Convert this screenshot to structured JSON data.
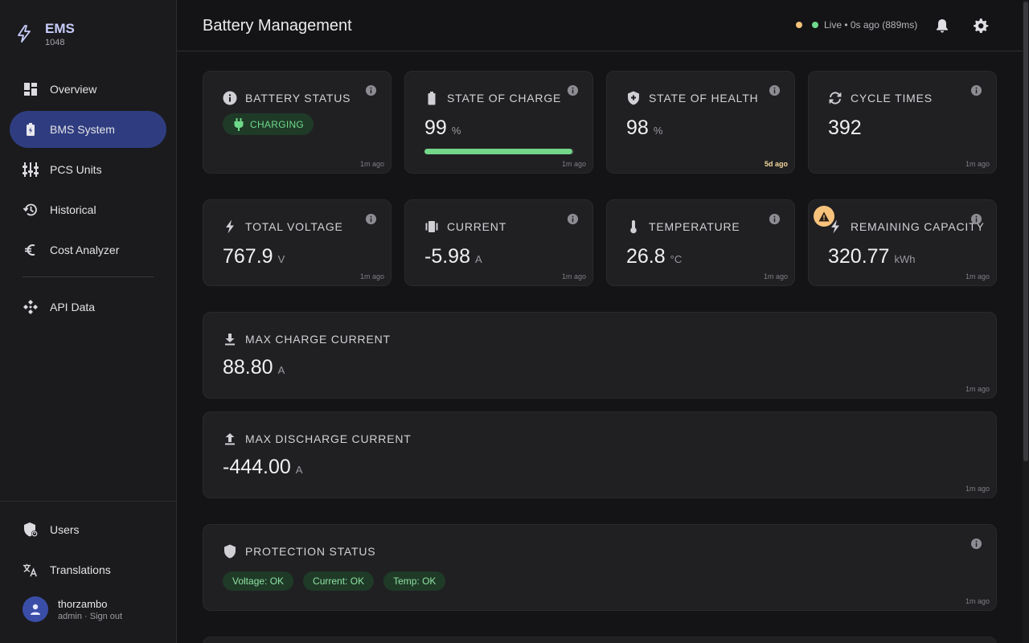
{
  "brand": {
    "name": "EMS",
    "sub": "1048"
  },
  "nav": {
    "items": [
      {
        "label": "Overview",
        "icon": "dashboard-icon"
      },
      {
        "label": "BMS System",
        "icon": "battery-icon",
        "active": true
      },
      {
        "label": "PCS Units",
        "icon": "inverter-icon"
      },
      {
        "label": "Historical",
        "icon": "history-icon"
      },
      {
        "label": "Cost Analyzer",
        "icon": "euro-icon"
      },
      {
        "label": "API Data",
        "icon": "api-icon"
      }
    ],
    "bottom": [
      {
        "label": "Users",
        "icon": "shield-user-icon"
      },
      {
        "label": "Translations",
        "icon": "translate-icon"
      }
    ]
  },
  "user": {
    "name": "thorzambo",
    "sub": "admin · Sign out"
  },
  "header": {
    "title": "Battery Management",
    "live_status": "Live • 0s ago (889ms)"
  },
  "cards": {
    "battery_status": {
      "title": "BATTERY STATUS",
      "chip": "CHARGING",
      "age": "1m ago"
    },
    "soc": {
      "title": "STATE OF CHARGE",
      "value": "99",
      "unit": "%",
      "progress_percent": 99,
      "age": "1m ago"
    },
    "soh": {
      "title": "STATE OF HEALTH",
      "value": "98",
      "unit": "%",
      "age": "5d ago"
    },
    "cycles": {
      "title": "CYCLE TIMES",
      "value": "392",
      "age": "1m ago"
    },
    "voltage": {
      "title": "TOTAL VOLTAGE",
      "value": "767.9",
      "unit": "V",
      "age": "1m ago"
    },
    "current": {
      "title": "CURRENT",
      "value": "-5.98",
      "unit": "A",
      "age": "1m ago"
    },
    "temperature": {
      "title": "TEMPERATURE",
      "value": "26.8",
      "unit": "°C",
      "age": "1m ago"
    },
    "capacity": {
      "title": "REMAINING CAPACITY",
      "value": "320.77",
      "unit": "kWh",
      "age": "1m ago"
    },
    "max_charge": {
      "title": "MAX CHARGE CURRENT",
      "value": "88.80",
      "unit": "A",
      "age": "1m ago"
    },
    "max_discharge": {
      "title": "MAX DISCHARGE CURRENT",
      "value": "-444.00",
      "unit": "A",
      "age": "1m ago"
    },
    "protection": {
      "title": "PROTECTION STATUS",
      "tags": [
        "Voltage: OK",
        "Current: OK",
        "Temp: OK"
      ],
      "age": "1m ago"
    }
  },
  "colors": {
    "accent": "#2f3d80",
    "ok_green": "#73d688",
    "warning": "#f7c27c",
    "live_dot": "#6fd98b",
    "status_dot": "#f3c27a"
  }
}
